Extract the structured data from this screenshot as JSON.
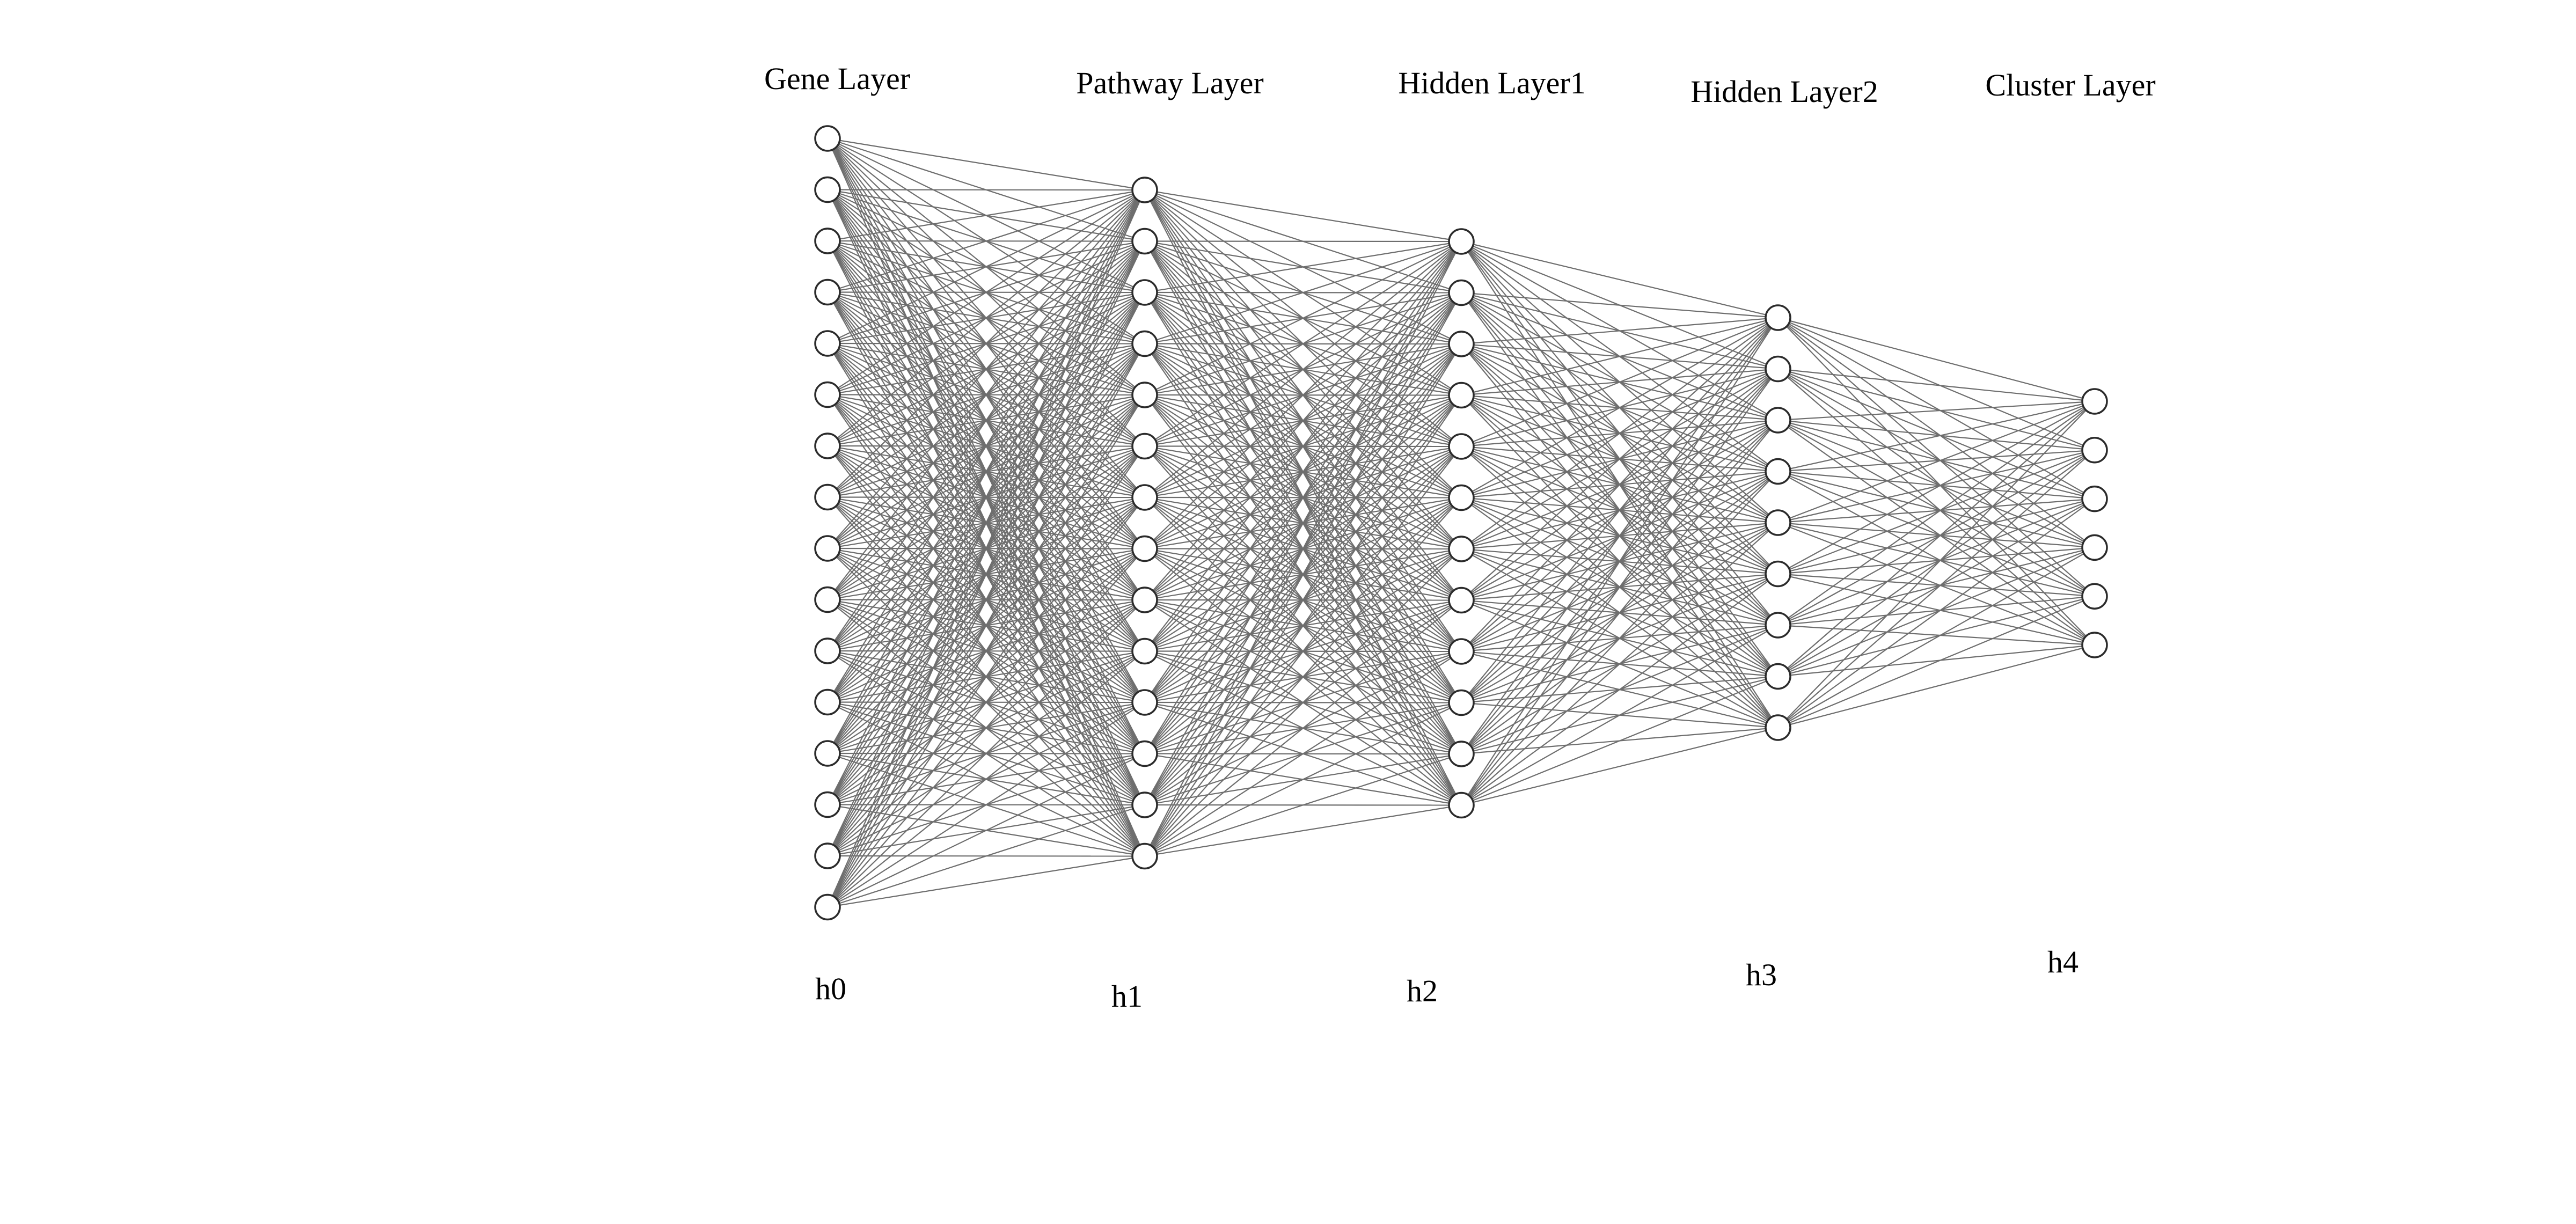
{
  "diagram": {
    "type": "fully-connected-neural-network",
    "fully_connected": true,
    "colors": {
      "background": "#ffffff",
      "edge": "#6e6e6e",
      "node_fill": "#ffffff",
      "node_stroke": "#2b2b2b",
      "text": "#000000"
    },
    "layers": [
      {
        "title": "Gene Layer",
        "id": "h0",
        "nodes": 16
      },
      {
        "title": "Pathway Layer",
        "id": "h1",
        "nodes": 14
      },
      {
        "title": "Hidden Layer1",
        "id": "h2",
        "nodes": 12
      },
      {
        "title": "Hidden Layer2",
        "id": "h3",
        "nodes": 9
      },
      {
        "title": "Cluster Layer",
        "id": "h4",
        "nodes": 6
      }
    ]
  }
}
